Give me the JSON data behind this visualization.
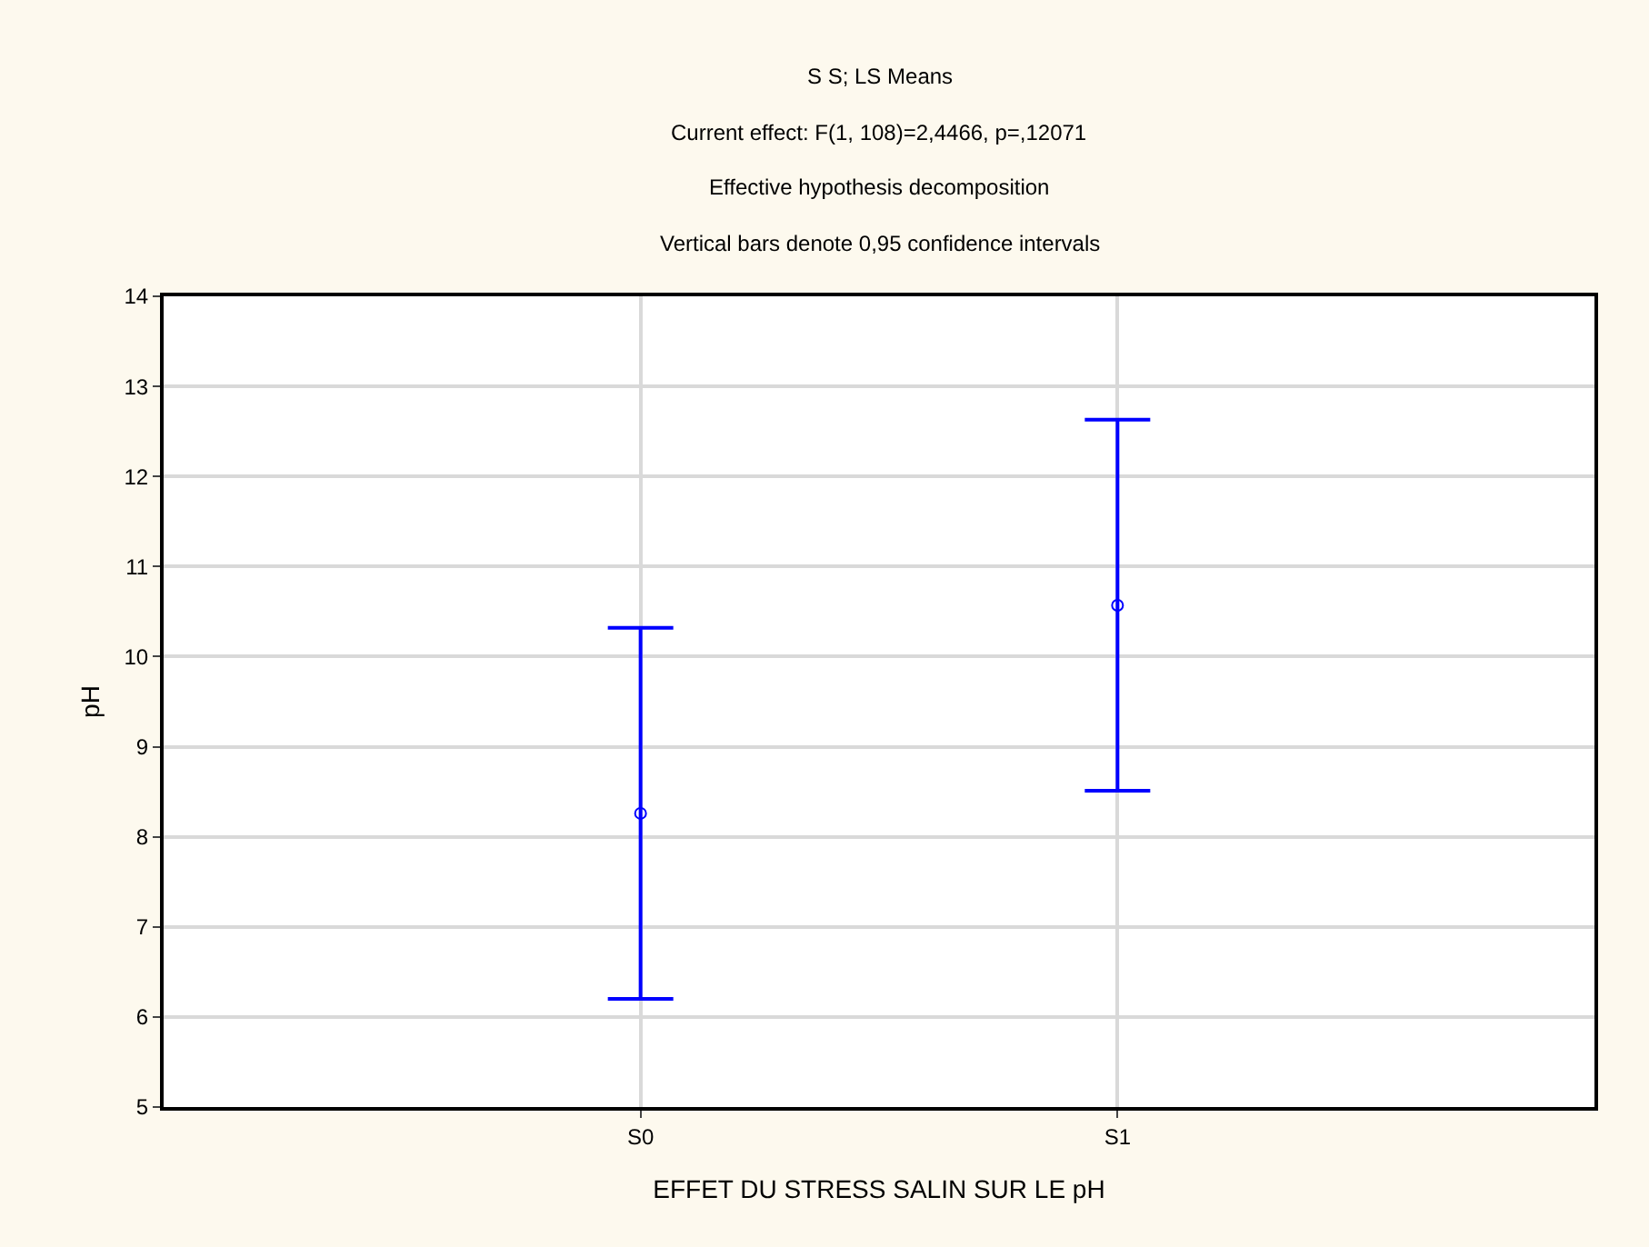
{
  "chart_data": {
    "type": "scatter",
    "title": "S S; LS Means",
    "subtitle": "Current effect: F(1, 108)=2,4466, p=,12071\nEffective hypothesis decomposition\nVertical bars denote 0,95 confidence intervals",
    "xlabel": "EFFET DU STRESS SALIN SUR LE pH",
    "ylabel": "pH",
    "categories": [
      "S0",
      "S1"
    ],
    "series": [
      {
        "color": "#0000ff",
        "values": [
          8.26,
          10.57
        ],
        "errors": [
          2.06,
          2.06
        ]
      }
    ],
    "ylim": [
      5,
      14
    ],
    "yticks": [
      5,
      6,
      7,
      8,
      9,
      10,
      11,
      12,
      13,
      14
    ],
    "grid": true,
    "marker": "circle"
  }
}
